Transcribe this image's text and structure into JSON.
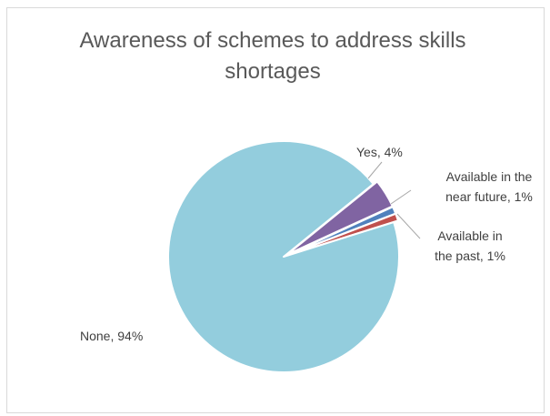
{
  "chart_data": {
    "type": "pie",
    "title": "Awareness of schemes to address skills shortages",
    "legend": "none",
    "slices": [
      {
        "label": "Yes",
        "value": 4,
        "color": "#8064a2",
        "data_label_lines": [
          "Yes, 4%"
        ]
      },
      {
        "label": "Available in the near future",
        "value": 1,
        "color": "#4f81bd",
        "data_label_lines": [
          "Available in the",
          "near future, 1%"
        ]
      },
      {
        "label": "Available in the past",
        "value": 1,
        "color": "#c0504d",
        "data_label_lines": [
          "Available in",
          "the past, 1%"
        ]
      },
      {
        "label": "None",
        "value": 94,
        "color": "#93cddd",
        "data_label_lines": [
          "None, 94%"
        ]
      }
    ],
    "leader_line_color": "#a6a6a6"
  }
}
